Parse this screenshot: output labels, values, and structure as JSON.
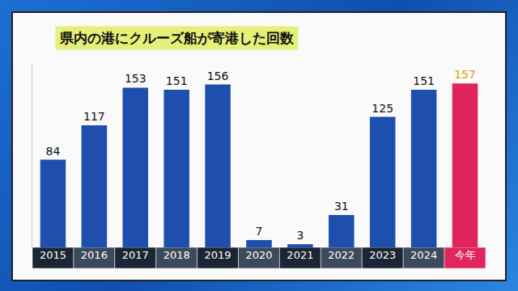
{
  "chart_data": {
    "type": "bar",
    "title": "県内の港にクルーズ船が寄港した回数",
    "categories": [
      "2015",
      "2016",
      "2017",
      "2018",
      "2019",
      "2020",
      "2021",
      "2022",
      "2023",
      "2024",
      "今年"
    ],
    "values": [
      84,
      117,
      153,
      151,
      156,
      7,
      3,
      31,
      125,
      151,
      157
    ],
    "colors": [
      "#1f4fae",
      "#1f4fae",
      "#1f4fae",
      "#1f4fae",
      "#1f4fae",
      "#1f4fae",
      "#1f4fae",
      "#1f4fae",
      "#1f4fae",
      "#1f4fae",
      "#e0245e"
    ],
    "ylim": [
      0,
      175
    ],
    "data_labels": true,
    "tick_labels": "x",
    "grid": false
  }
}
